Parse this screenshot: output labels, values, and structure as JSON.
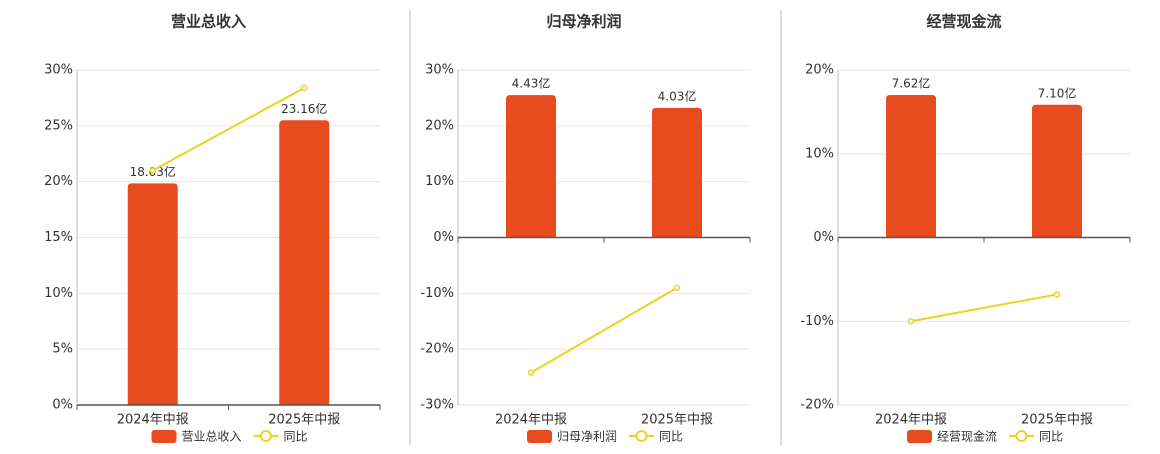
{
  "chart_data": [
    {
      "type": "bar",
      "title": "营业总收入",
      "categories": [
        "2024年中报",
        "2025年中报"
      ],
      "series": [
        {
          "name": "营业总收入",
          "color": "#e84c1e",
          "axis": "y2",
          "values": [
            18.03,
            23.16
          ],
          "value_labels": [
            "18.03亿",
            "23.16亿"
          ]
        },
        {
          "name": "同比",
          "color": "#f0d020",
          "type": "line",
          "values": [
            21.0,
            28.4
          ]
        }
      ],
      "ylim": [
        0,
        30
      ],
      "yticks": [
        {
          "value": 0,
          "label": "0%"
        },
        {
          "value": 5,
          "label": "5%"
        },
        {
          "value": 10,
          "label": "10%"
        },
        {
          "value": 15,
          "label": "15%"
        },
        {
          "value": 20,
          "label": "20%"
        },
        {
          "value": 25,
          "label": "25%"
        },
        {
          "value": 30,
          "label": "30%"
        }
      ],
      "y2lim": [
        0,
        27.25
      ],
      "grid": true
    },
    {
      "type": "bar",
      "title": "归母净利润",
      "categories": [
        "2024年中报",
        "2025年中报"
      ],
      "series": [
        {
          "name": "归母净利润",
          "color": "#e84c1e",
          "axis": "y2",
          "values": [
            4.43,
            4.03
          ],
          "value_labels": [
            "4.43亿",
            "4.03亿"
          ]
        },
        {
          "name": "同比",
          "color": "#f0d020",
          "type": "line",
          "values": [
            -24.2,
            -9.0
          ]
        }
      ],
      "ylim": [
        -30,
        30
      ],
      "yticks": [
        {
          "value": -30,
          "label": "-30%"
        },
        {
          "value": -20,
          "label": "-20%"
        },
        {
          "value": -10,
          "label": "-10%"
        },
        {
          "value": 0,
          "label": "0%"
        },
        {
          "value": 10,
          "label": "10%"
        },
        {
          "value": 20,
          "label": "20%"
        },
        {
          "value": 30,
          "label": "30%"
        }
      ],
      "y2lim": [
        -5.21,
        5.21
      ],
      "grid": true
    },
    {
      "type": "bar",
      "title": "经营现金流",
      "categories": [
        "2024年中报",
        "2025年中报"
      ],
      "series": [
        {
          "name": "经营现金流",
          "color": "#e84c1e",
          "axis": "y2",
          "values": [
            7.62,
            7.1
          ],
          "value_labels": [
            "7.62亿",
            "7.10亿"
          ]
        },
        {
          "name": "同比",
          "color": "#f0d020",
          "type": "line",
          "values": [
            -10.0,
            -6.8
          ]
        }
      ],
      "ylim": [
        -20,
        20
      ],
      "yticks": [
        {
          "value": -20,
          "label": "-20%"
        },
        {
          "value": -10,
          "label": "-10%"
        },
        {
          "value": 0,
          "label": "0%"
        },
        {
          "value": 10,
          "label": "10%"
        },
        {
          "value": 20,
          "label": "20%"
        }
      ],
      "y2lim": [
        -8.96,
        8.96
      ],
      "grid": true
    }
  ]
}
